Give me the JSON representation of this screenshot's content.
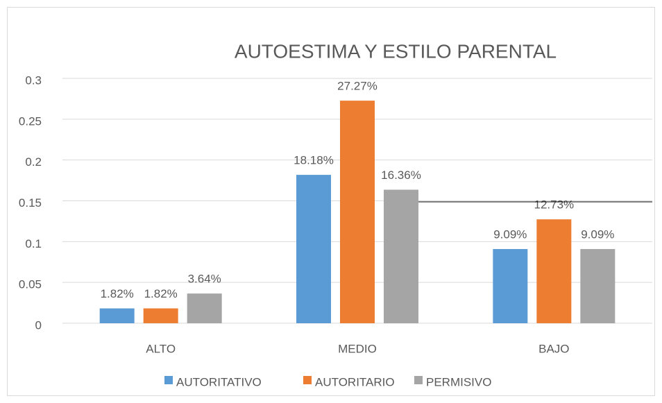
{
  "chart_data": {
    "type": "bar",
    "title": "AUTOESTIMA Y ESTILO PARENTAL",
    "categories": [
      "ALTO",
      "MEDIO",
      "BAJO"
    ],
    "series": [
      {
        "name": "AUTORITATIVO",
        "color": "#5b9bd5",
        "values": [
          0.0182,
          0.1818,
          0.0909
        ],
        "value_labels": [
          "1.82%",
          "18.18%",
          "9.09%"
        ]
      },
      {
        "name": "AUTORITARIO",
        "color": "#ed7d31",
        "values": [
          0.0182,
          0.2727,
          0.1273
        ],
        "value_labels": [
          "1.82%",
          "27.27%",
          "12.73%"
        ]
      },
      {
        "name": "PERMISIVO",
        "color": "#a5a5a5",
        "values": [
          0.0364,
          0.1636,
          0.0909
        ],
        "value_labels": [
          "3.64%",
          "16.36%",
          "9.09%"
        ]
      }
    ],
    "ylim": [
      0,
      0.3
    ],
    "yticks": [
      0,
      0.05,
      0.1,
      0.15,
      0.2,
      0.25,
      0.3
    ],
    "grid": true,
    "legend": "bottom"
  }
}
